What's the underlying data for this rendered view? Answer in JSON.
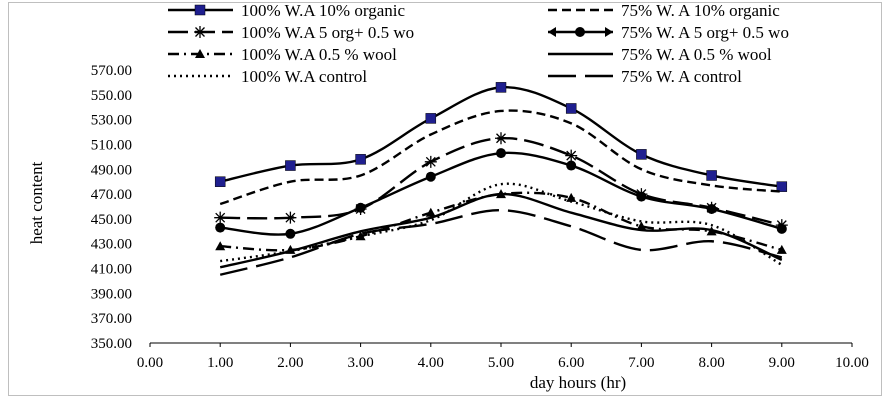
{
  "chart_data": {
    "type": "line",
    "title": "",
    "xlabel": "day hours (hr)",
    "ylabel": "heat content",
    "xlim": [
      0,
      10
    ],
    "ylim": [
      350,
      570
    ],
    "x_ticks": [
      "0.00",
      "1.00",
      "2.00",
      "3.00",
      "4.00",
      "5.00",
      "6.00",
      "7.00",
      "8.00",
      "9.00",
      "10.00"
    ],
    "y_ticks": [
      "350.00",
      "370.00",
      "390.00",
      "410.00",
      "430.00",
      "450.00",
      "470.00",
      "490.00",
      "510.00",
      "530.00",
      "550.00",
      "570.00"
    ],
    "grid": false,
    "legend_position": "top",
    "x": [
      1,
      2,
      3,
      4,
      5,
      6,
      7,
      8,
      9
    ],
    "series": [
      {
        "name": "100% W.A 10% organic",
        "values": [
          480,
          493,
          498,
          531,
          556,
          539,
          502,
          485,
          476
        ],
        "color": "#000000",
        "dash": "solid",
        "marker": "square"
      },
      {
        "name": "75% W. A 10% organic",
        "values": [
          462,
          480,
          485,
          518,
          537,
          527,
          490,
          477,
          472
        ],
        "color": "#000000",
        "dash": "dash",
        "marker": "none"
      },
      {
        "name": "100% W.A 5 org+ 0.5 wo",
        "values": [
          451,
          451,
          458,
          496,
          515,
          501,
          470,
          459,
          445
        ],
        "color": "#000000",
        "dash": "longdash",
        "marker": "star"
      },
      {
        "name": "75% W. A 5 org+ 0.5 wo",
        "values": [
          443,
          438,
          459,
          484,
          503,
          493,
          468,
          458,
          442
        ],
        "color": "#000000",
        "dash": "solid",
        "marker": "circle"
      },
      {
        "name": "100% W.A 0.5 % wool",
        "values": [
          428,
          425,
          436,
          455,
          470,
          467,
          444,
          440,
          425
        ],
        "color": "#000000",
        "dash": "dashdot",
        "marker": "triangle"
      },
      {
        "name": "75% W. A 0.5 % wool",
        "values": [
          411,
          424,
          440,
          451,
          470,
          455,
          441,
          441,
          417
        ],
        "color": "#000000",
        "dash": "solid",
        "marker": "none"
      },
      {
        "name": "100% W.A control",
        "values": [
          416,
          424,
          436,
          449,
          478,
          464,
          448,
          445,
          413
        ],
        "color": "#000000",
        "dash": "dot",
        "marker": "none"
      },
      {
        "name": "75% W. A control",
        "values": [
          405,
          419,
          438,
          446,
          457,
          444,
          425,
          432,
          419
        ],
        "color": "#000000",
        "dash": "biglongdash",
        "marker": "none"
      }
    ]
  }
}
